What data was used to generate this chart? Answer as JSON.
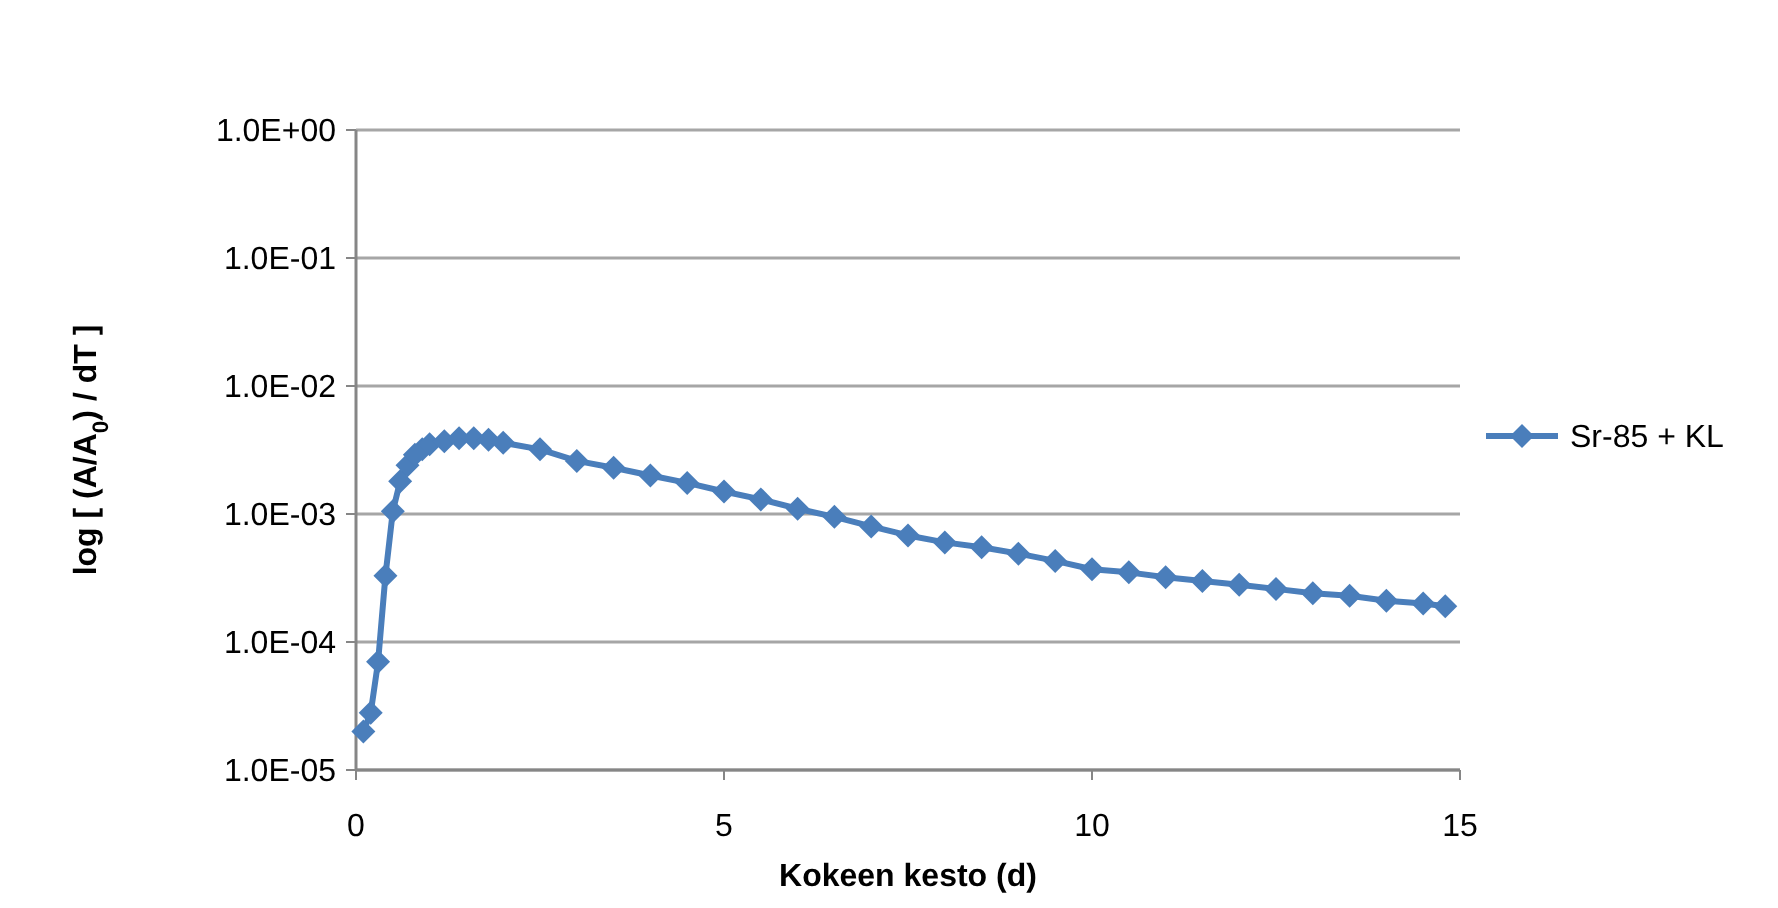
{
  "chart_data": {
    "type": "line",
    "xlabel": "Kokeen kesto (d)",
    "ylabel": "log [ (A/A$_{0}$) / dT ]",
    "log": "y",
    "grid": "y",
    "legend": "right",
    "marker": "diamond",
    "line_style": "solid",
    "xlim": [
      0,
      15
    ],
    "xticks": [
      0,
      5,
      10,
      15
    ],
    "ylim": [
      1e-05,
      1
    ],
    "yticks": [
      {
        "value": 1e-05,
        "label": "1.0E-05"
      },
      {
        "value": 0.0001,
        "label": "1.0E-04"
      },
      {
        "value": 0.001,
        "label": "1.0E-03"
      },
      {
        "value": 0.01,
        "label": "1.0E-02"
      },
      {
        "value": 0.1,
        "label": "1.0E-01"
      },
      {
        "value": 1,
        "label": "1.0E+00"
      }
    ],
    "series": [
      {
        "name": "Sr-85 + KL",
        "color": "#4a7ebb",
        "x": [
          0.1,
          0.2,
          0.3,
          0.4,
          0.5,
          0.6,
          0.7,
          0.8,
          0.9,
          1.0,
          1.2,
          1.4,
          1.6,
          1.8,
          2.0,
          2.5,
          3,
          3.5,
          4,
          4.5,
          5,
          5.5,
          6,
          6.5,
          7,
          7.5,
          8,
          8.5,
          9,
          9.5,
          10,
          10.5,
          11,
          11.5,
          12,
          12.5,
          13,
          13.5,
          14,
          14.5,
          14.8
        ],
        "values": [
          2e-05,
          2.8e-05,
          7e-05,
          0.00033,
          0.00105,
          0.0018,
          0.0024,
          0.0029,
          0.0032,
          0.0035,
          0.0037,
          0.0039,
          0.0039,
          0.0038,
          0.0036,
          0.0032,
          0.0026,
          0.0023,
          0.002,
          0.00175,
          0.0015,
          0.0013,
          0.0011,
          0.00095,
          0.0008,
          0.00068,
          0.0006,
          0.00055,
          0.00049,
          0.00043,
          0.00037,
          0.00035,
          0.00032,
          0.0003,
          0.00028,
          0.00026,
          0.00024,
          0.00023,
          0.00021,
          0.0002,
          0.00019
        ]
      }
    ]
  }
}
